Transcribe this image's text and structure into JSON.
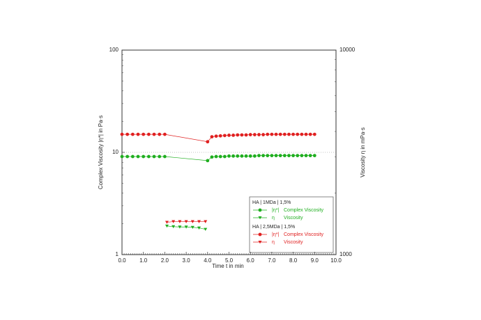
{
  "chart_data": {
    "type": "line",
    "xlabel": "Time t in min",
    "ylabel": "Complex Viscosity |η*| in Pa·s",
    "y2label": "Viscosity η in mPa·s",
    "xlim": [
      0,
      10
    ],
    "xticks": [
      {
        "value": 0,
        "label": "0.0"
      },
      {
        "value": 1,
        "label": "1.0"
      },
      {
        "value": 2,
        "label": "2.0"
      },
      {
        "value": 3,
        "label": "3.0"
      },
      {
        "value": 4,
        "label": "4.0"
      },
      {
        "value": 5,
        "label": "5.0"
      },
      {
        "value": 6,
        "label": "6.0"
      },
      {
        "value": 7,
        "label": "7.0"
      },
      {
        "value": 8,
        "label": "8.0"
      },
      {
        "value": 9,
        "label": "9.0"
      },
      {
        "value": 10,
        "label": "10.0"
      }
    ],
    "ylim": [
      1,
      100
    ],
    "yticks": [
      1,
      10,
      100
    ],
    "ylog": true,
    "y2lim": [
      1000,
      10000
    ],
    "y2ticks": [
      1000,
      10000
    ],
    "y2log": true,
    "grid_y": [
      10
    ],
    "series_groups": [
      {
        "title": "HA | 1MDa | 1,5%",
        "series": [
          {
            "name": "Complex Viscosity",
            "symbol": "|η*|",
            "color": "#1fae1f",
            "marker": "circle",
            "axis": "y",
            "x": [
              0,
              0.25,
              0.5,
              0.75,
              1,
              1.25,
              1.5,
              1.75,
              2,
              4,
              4.2,
              4.4,
              4.6,
              4.8,
              5,
              5.2,
              5.4,
              5.6,
              5.8,
              6,
              6.2,
              6.4,
              6.6,
              6.8,
              7,
              7.2,
              7.4,
              7.6,
              7.8,
              8,
              8.2,
              8.4,
              8.6,
              8.8,
              9
            ],
            "values": [
              9.1,
              9.1,
              9.1,
              9.1,
              9.1,
              9.1,
              9.1,
              9.1,
              9.1,
              8.3,
              9.0,
              9.1,
              9.1,
              9.1,
              9.2,
              9.2,
              9.2,
              9.2,
              9.2,
              9.2,
              9.2,
              9.3,
              9.3,
              9.3,
              9.3,
              9.3,
              9.3,
              9.3,
              9.3,
              9.3,
              9.3,
              9.3,
              9.3,
              9.3,
              9.3
            ]
          },
          {
            "name": "Viscosity",
            "symbol": "η",
            "color": "#1fae1f",
            "marker": "triangle",
            "axis": "y2",
            "x": [
              2.1,
              2.4,
              2.7,
              3.0,
              3.3,
              3.6,
              3.9
            ],
            "values": [
              1380,
              1370,
              1365,
              1365,
              1360,
              1350,
              1330
            ]
          }
        ]
      },
      {
        "title": "HA | 2,5MDa | 1,5%",
        "series": [
          {
            "name": "Complex Viscosity",
            "symbol": "|η*|",
            "color": "#e02020",
            "marker": "circle",
            "axis": "y",
            "x": [
              0,
              0.25,
              0.5,
              0.75,
              1,
              1.25,
              1.5,
              1.75,
              2,
              4,
              4.2,
              4.4,
              4.6,
              4.8,
              5,
              5.2,
              5.4,
              5.6,
              5.8,
              6,
              6.2,
              6.4,
              6.6,
              6.8,
              7,
              7.2,
              7.4,
              7.6,
              7.8,
              8,
              8.2,
              8.4,
              8.6,
              8.8,
              9
            ],
            "values": [
              15,
              15,
              15,
              15,
              15,
              15,
              15,
              15,
              15,
              12.7,
              14.2,
              14.4,
              14.5,
              14.6,
              14.7,
              14.7,
              14.8,
              14.8,
              14.8,
              14.9,
              14.9,
              14.9,
              14.9,
              15,
              15,
              15,
              15,
              15,
              15,
              15,
              15,
              15,
              15,
              15,
              15
            ]
          },
          {
            "name": "Viscosity",
            "symbol": "η",
            "color": "#e02020",
            "marker": "triangle",
            "axis": "y2",
            "x": [
              2.1,
              2.4,
              2.7,
              3.0,
              3.3,
              3.6,
              3.9
            ],
            "values": [
              1440,
              1450,
              1450,
              1450,
              1450,
              1450,
              1450
            ]
          }
        ]
      }
    ]
  }
}
